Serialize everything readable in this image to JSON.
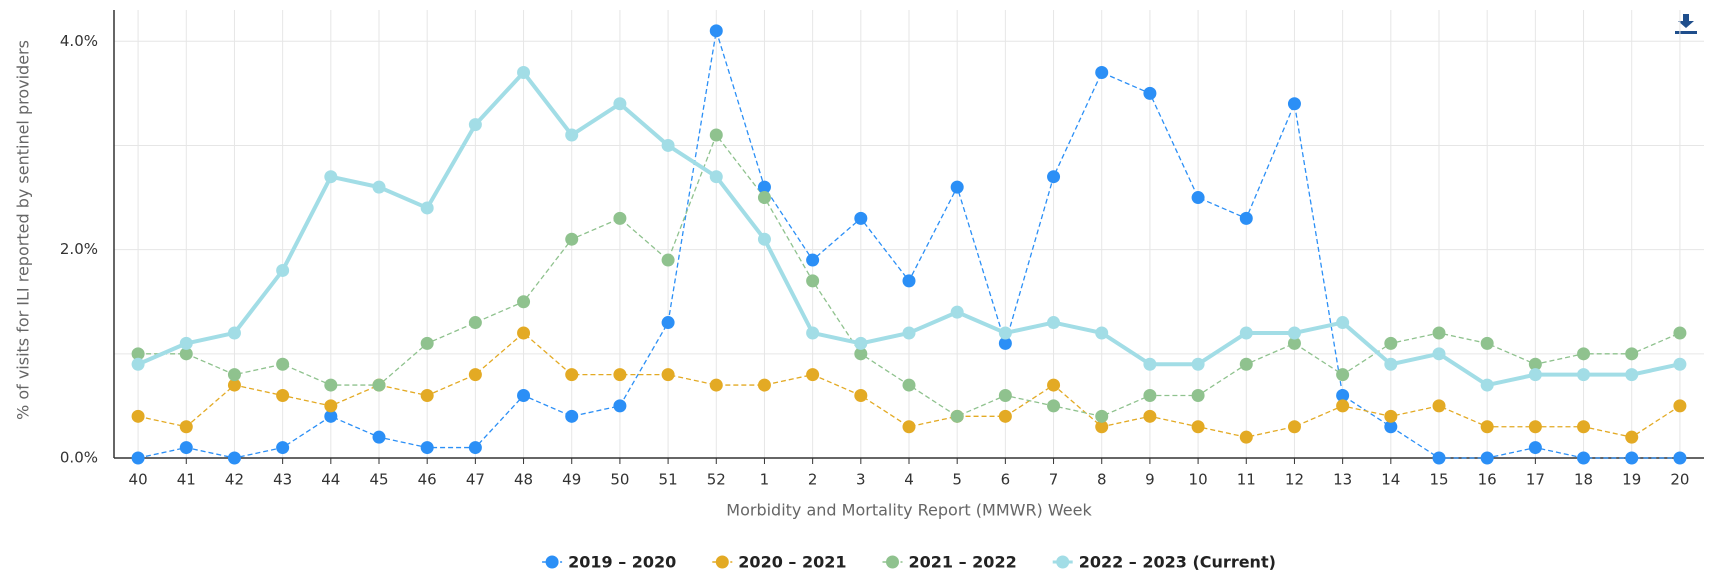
{
  "chart_data": {
    "type": "line",
    "y_axis_label": "% of visits for ILI reported by sentinel providers",
    "x_axis_label": "Morbidity and Mortality Report (MMWR) Week",
    "categories": [
      "40",
      "41",
      "42",
      "43",
      "44",
      "45",
      "46",
      "47",
      "48",
      "49",
      "50",
      "51",
      "52",
      "1",
      "2",
      "3",
      "4",
      "5",
      "6",
      "7",
      "8",
      "9",
      "10",
      "11",
      "12",
      "13",
      "14",
      "15",
      "16",
      "17",
      "18",
      "19",
      "20"
    ],
    "series": [
      {
        "name": "2019 – 2020",
        "color": "#2b8ff6",
        "dashed": true,
        "values": [
          0,
          0.1,
          0,
          0.1,
          0.4,
          0.2,
          0.1,
          0.1,
          0.6,
          0.4,
          0.5,
          1.3,
          4.1,
          2.6,
          1.9,
          2.3,
          1.7,
          2.6,
          1.1,
          2.7,
          3.7,
          3.5,
          2.5,
          2.3,
          3.4,
          0.6,
          0.3,
          0,
          0,
          0.1,
          0,
          0,
          0
        ]
      },
      {
        "name": "2020 – 2021",
        "color": "#e3aa24",
        "dashed": true,
        "values": [
          0.4,
          0.3,
          0.7,
          0.6,
          0.5,
          0.7,
          0.6,
          0.8,
          1.2,
          0.8,
          0.8,
          0.8,
          0.7,
          0.7,
          0.8,
          0.6,
          0.3,
          0.4,
          0.4,
          0.7,
          0.3,
          0.4,
          0.3,
          0.2,
          0.3,
          0.5,
          0.4,
          0.5,
          0.3,
          0.3,
          0.3,
          0.2,
          0.5
        ]
      },
      {
        "name": "2021 – 2022",
        "color": "#8fc28e",
        "dashed": true,
        "values": [
          1.0,
          1.0,
          0.8,
          0.9,
          0.7,
          0.7,
          1.1,
          1.3,
          1.5,
          2.1,
          2.3,
          1.9,
          3.1,
          2.5,
          1.7,
          1.0,
          0.7,
          0.4,
          0.6,
          0.5,
          0.4,
          0.6,
          0.6,
          0.9,
          1.1,
          0.8,
          1.1,
          1.2,
          1.1,
          0.9,
          1.0,
          1.0,
          1.2
        ]
      },
      {
        "name": "2022 – 2023 (Current)",
        "color": "#a2dde6",
        "dashed": false,
        "values": [
          0.9,
          1.1,
          1.2,
          1.8,
          2.7,
          2.6,
          2.4,
          3.2,
          3.7,
          3.1,
          3.4,
          3.0,
          2.7,
          2.1,
          1.2,
          1.1,
          1.2,
          1.4,
          1.2,
          1.3,
          1.2,
          0.9,
          0.9,
          1.2,
          1.2,
          1.3,
          0.9,
          1.0,
          0.7,
          0.8,
          0.8,
          0.8,
          0.9
        ]
      }
    ],
    "ylim": [
      0,
      4.3
    ],
    "yticks": [
      {
        "value": 0,
        "label": "0.0%"
      },
      {
        "value": 2,
        "label": "2.0%"
      },
      {
        "value": 4,
        "label": "4.0%"
      }
    ],
    "minor_ygrid": [
      1,
      3
    ],
    "grid": true,
    "legend": "bottom"
  }
}
